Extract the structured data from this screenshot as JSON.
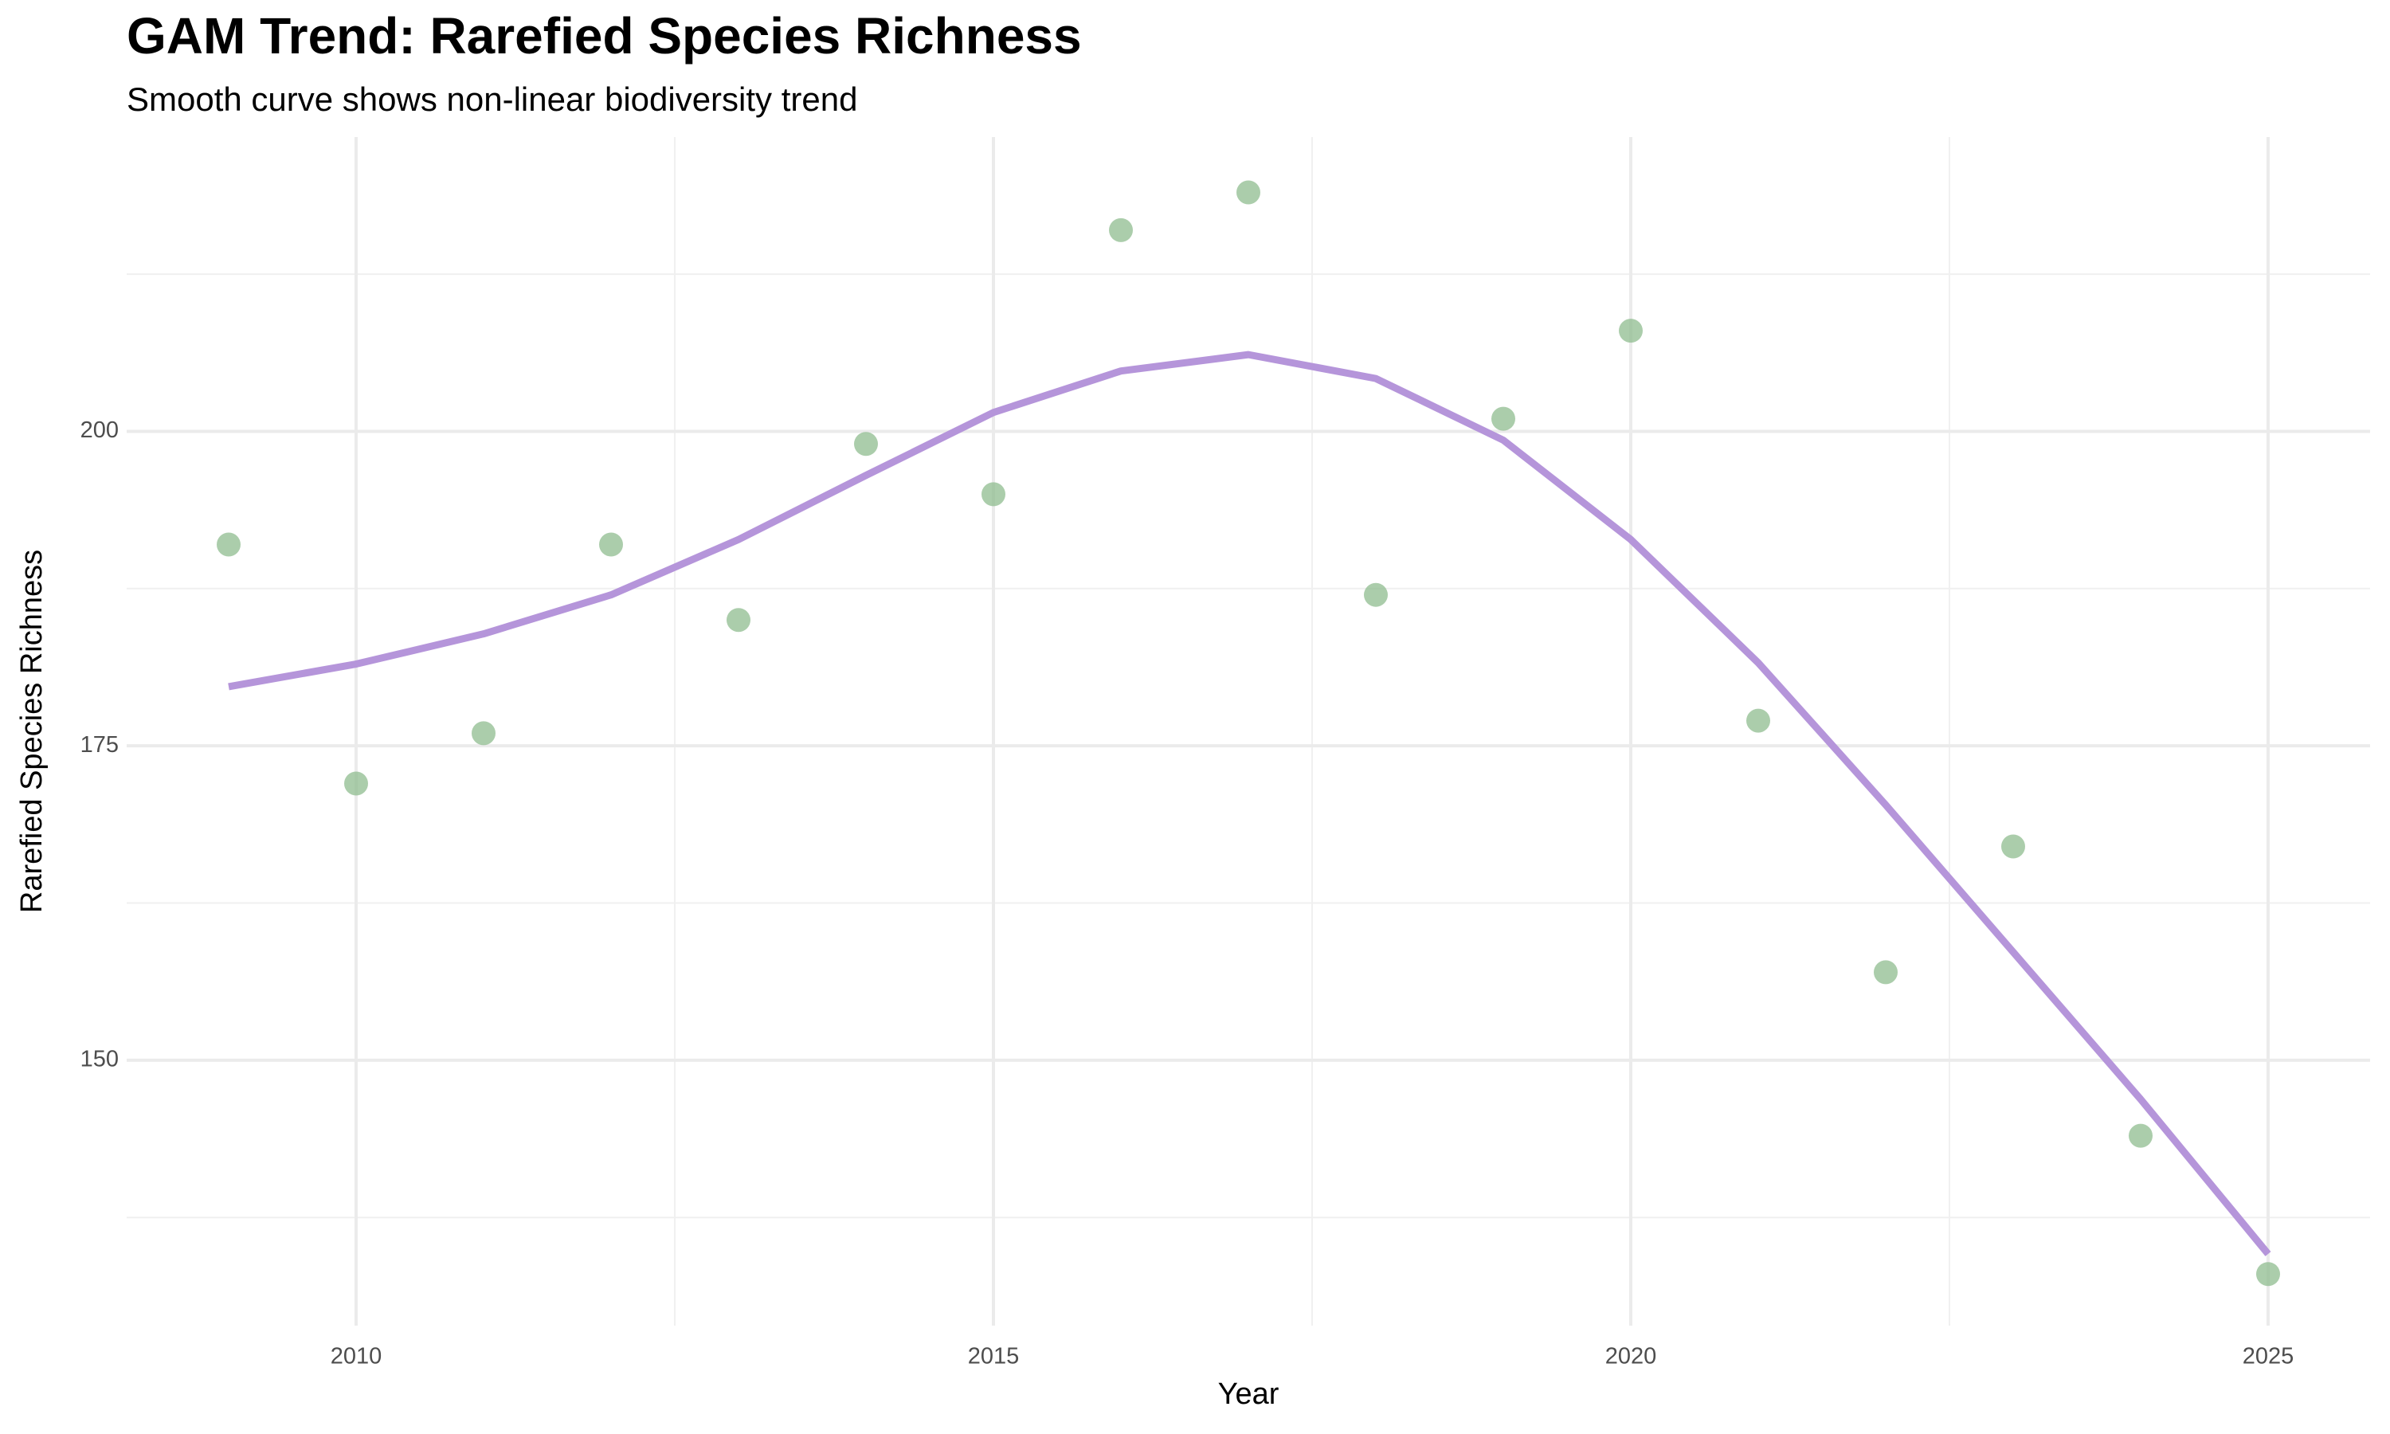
{
  "chart_data": {
    "type": "scatter",
    "title": "GAM Trend: Rarefied Species Richness",
    "subtitle": "Smooth curve shows non-linear biodiversity trend",
    "x_label": "Year",
    "y_label": "Rarefied Species Richness",
    "x": [
      2009,
      2010,
      2011,
      2012,
      2013,
      2014,
      2015,
      2016,
      2017,
      2018,
      2019,
      2020,
      2021,
      2022,
      2023,
      2024,
      2025
    ],
    "series": [
      {
        "type": "scatter",
        "color": "#8fbc8f",
        "values": [
          191,
          172,
          176,
          191,
          185,
          199,
          195,
          216,
          219,
          187,
          201,
          208,
          177,
          157,
          167,
          144,
          133
        ]
      },
      {
        "type": "line",
        "color": "#b595da",
        "values": [
          179.7,
          181.5,
          183.9,
          187.0,
          191.4,
          196.5,
          201.5,
          204.8,
          206.1,
          204.2,
          199.3,
          191.4,
          181.6,
          170.3,
          158.6,
          146.9,
          134.6
        ]
      }
    ],
    "xlim": [
      2008.2,
      2025.8
    ],
    "ylim": [
      128.9,
      223.4
    ],
    "xticks": [
      2010,
      2015,
      2020,
      2025
    ],
    "yticks": [
      150,
      175,
      200
    ],
    "x_minor_ticks": [
      2012.5,
      2017.5,
      2022.5
    ],
    "y_minor_ticks": [
      137.5,
      162.5,
      187.5,
      212.5
    ],
    "grid": true
  }
}
